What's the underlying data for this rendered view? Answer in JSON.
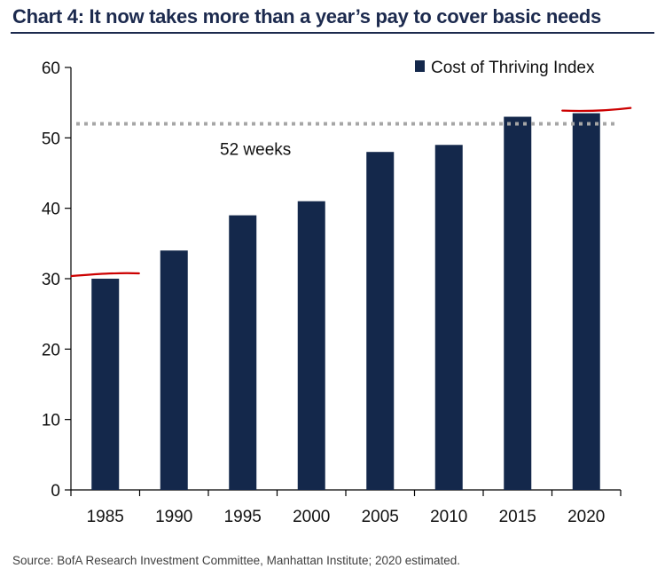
{
  "title": "Chart 4: It now takes more than a year’s pay to cover basic needs",
  "source": "Source: BofA Research Investment Committee, Manhattan Institute; 2020 estimated.",
  "colors": {
    "bar": "#14284b",
    "title": "#1c2a4e",
    "reference_line": "#a6a6a6",
    "annotation": "#cc0000"
  },
  "chart_data": {
    "type": "bar",
    "title": "Chart 4: It now takes more than a year’s pay to cover basic needs",
    "categories": [
      "1985",
      "1990",
      "1995",
      "2000",
      "2005",
      "2010",
      "2015",
      "2020"
    ],
    "series": [
      {
        "name": "Cost of Thriving Index",
        "values": [
          30,
          34,
          39,
          41,
          48,
          49,
          53,
          53.5
        ]
      }
    ],
    "ylim": [
      0,
      60
    ],
    "yticks": [
      0,
      10,
      20,
      30,
      40,
      50,
      60
    ],
    "xlabel": "",
    "ylabel": "",
    "legend_position": "top-right",
    "grid": false,
    "reference_line": {
      "value": 52,
      "label": "52 weeks",
      "style": "dotted"
    },
    "annotations": [
      {
        "type": "hand-drawn-underline",
        "category": "1985",
        "value": 30.5
      },
      {
        "type": "hand-drawn-underline",
        "category": "2020",
        "value": 54
      }
    ]
  }
}
